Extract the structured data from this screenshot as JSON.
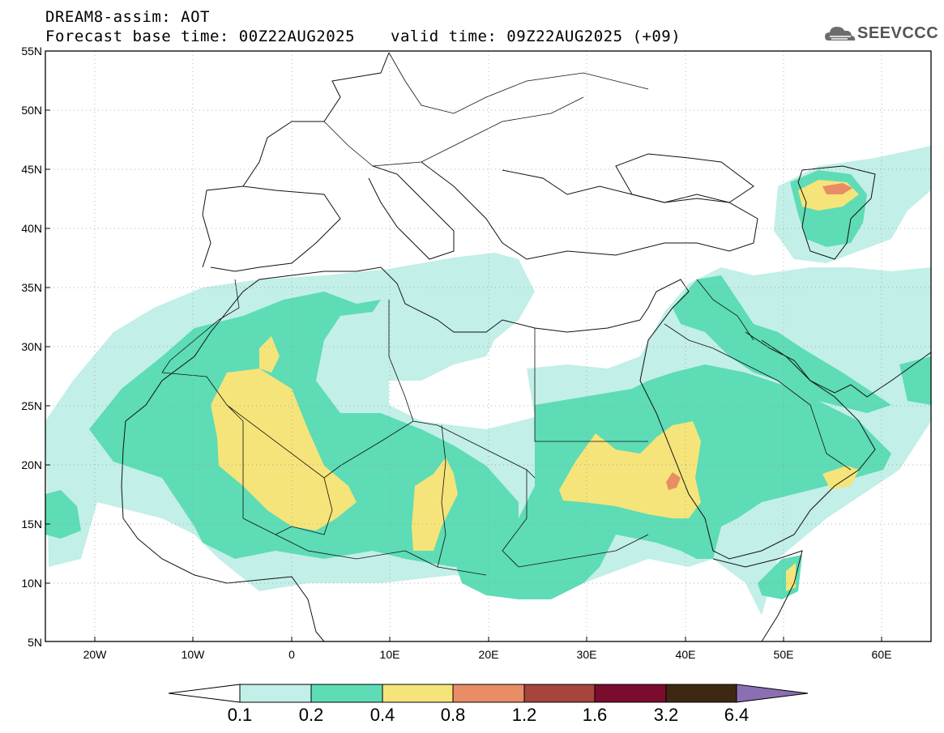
{
  "header": {
    "title": "DREAM8-assim: AOT",
    "base_time": "Forecast base time: 00Z22AUG2025",
    "valid_time": "valid time: 09Z22AUG2025 (+09)",
    "logo_text": "SEEVCCC"
  },
  "map": {
    "lat_labels": [
      "55N",
      "50N",
      "45N",
      "40N",
      "35N",
      "30N",
      "25N",
      "20N",
      "15N",
      "10N",
      "5N"
    ],
    "lon_labels": [
      "20W",
      "10W",
      "0",
      "10E",
      "20E",
      "30E",
      "40E",
      "50E",
      "60E"
    ],
    "extent": {
      "lon_min": -25,
      "lon_max": 65,
      "lat_min": 5,
      "lat_max": 55
    }
  },
  "colorbar": {
    "levels": [
      "0.1",
      "0.2",
      "0.4",
      "0.8",
      "1.2",
      "1.6",
      "3.2",
      "6.4"
    ],
    "colors": [
      "#c2efe8",
      "#5ddcb5",
      "#f5e47a",
      "#e98d66",
      "#a5453b",
      "#7a0c2e",
      "#3e2814",
      "#8a6fb3"
    ],
    "under_color": "#ffffff"
  }
}
